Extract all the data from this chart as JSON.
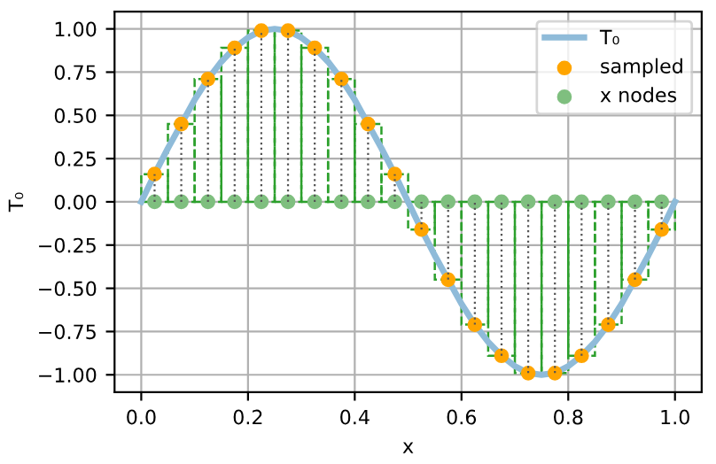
{
  "chart_data": {
    "type": "line",
    "xlabel": "x",
    "ylabel": "T₀",
    "grid": true,
    "legend": "top right",
    "xlim": [
      -0.05,
      1.05
    ],
    "ylim": [
      -1.1,
      1.1
    ],
    "xticks": [
      {
        "value": 0,
        "label": "0.0"
      },
      {
        "value": 0.2,
        "label": "0.2"
      },
      {
        "value": 0.4,
        "label": "0.4"
      },
      {
        "value": 0.6,
        "label": "0.6"
      },
      {
        "value": 0.8,
        "label": "0.8"
      },
      {
        "value": 1,
        "label": "1.0"
      }
    ],
    "yticks": [
      {
        "value": -1,
        "label": "−1.00"
      },
      {
        "value": -0.75,
        "label": "−0.75"
      },
      {
        "value": -0.5,
        "label": "−0.50"
      },
      {
        "value": -0.25,
        "label": "−0.25"
      },
      {
        "value": 0,
        "label": "0.00"
      },
      {
        "value": 0.25,
        "label": "0.25"
      },
      {
        "value": 0.5,
        "label": "0.50"
      },
      {
        "value": 0.75,
        "label": "0.75"
      },
      {
        "value": 1,
        "label": "1.00"
      }
    ],
    "series": [
      {
        "type": "bar",
        "color": "#2ca02c",
        "line_style": "dashed",
        "x": [
          0.025,
          0.075,
          0.125,
          0.175,
          0.225,
          0.275,
          0.325,
          0.375,
          0.425,
          0.475,
          0.525,
          0.575,
          0.625,
          0.675,
          0.725,
          0.775,
          0.825,
          0.875,
          0.925,
          0.975
        ],
        "values": [
          0.16,
          0.45,
          0.71,
          0.89,
          0.99,
          0.99,
          0.89,
          0.71,
          0.45,
          0.16,
          -0.16,
          -0.45,
          -0.71,
          -0.89,
          -0.99,
          -0.99,
          -0.89,
          -0.71,
          -0.45,
          -0.16
        ]
      },
      {
        "name": "T₀",
        "color": "#8fbbd9",
        "line_style": "solid",
        "marker": "none",
        "x": [
          0,
          0.025,
          0.05,
          0.075,
          0.1,
          0.125,
          0.15,
          0.175,
          0.2,
          0.225,
          0.25,
          0.275,
          0.3,
          0.325,
          0.35,
          0.375,
          0.4,
          0.425,
          0.45,
          0.475,
          0.5,
          0.525,
          0.55,
          0.575,
          0.6,
          0.625,
          0.65,
          0.675,
          0.7,
          0.725,
          0.75,
          0.775,
          0.8,
          0.825,
          0.85,
          0.875,
          0.9,
          0.925,
          0.95,
          0.975,
          1
        ],
        "values": [
          0,
          0.16,
          0.31,
          0.45,
          0.59,
          0.71,
          0.81,
          0.89,
          0.95,
          0.99,
          1,
          0.99,
          0.95,
          0.89,
          0.81,
          0.71,
          0.59,
          0.45,
          0.31,
          0.16,
          0,
          -0.16,
          -0.31,
          -0.45,
          -0.59,
          -0.71,
          -0.81,
          -0.89,
          -0.95,
          -0.99,
          -1,
          -0.99,
          -0.95,
          -0.89,
          -0.81,
          -0.71,
          -0.59,
          -0.45,
          -0.31,
          -0.16,
          0
        ]
      },
      {
        "type": "scatter",
        "name": "sampled",
        "color": "#ffa500",
        "marker": "circle",
        "line_style": "dotted",
        "x": [
          0.025,
          0.075,
          0.125,
          0.175,
          0.225,
          0.275,
          0.325,
          0.375,
          0.425,
          0.475,
          0.525,
          0.575,
          0.625,
          0.675,
          0.725,
          0.775,
          0.825,
          0.875,
          0.925,
          0.975
        ],
        "values": [
          0.16,
          0.45,
          0.71,
          0.89,
          0.99,
          0.99,
          0.89,
          0.71,
          0.45,
          0.16,
          -0.16,
          -0.45,
          -0.71,
          -0.89,
          -0.99,
          -0.99,
          -0.89,
          -0.71,
          -0.45,
          -0.16
        ],
        "errors": [
          [
            0,
            0.16
          ],
          [
            0,
            0.45
          ],
          [
            0,
            0.71
          ],
          [
            0,
            0.89
          ],
          [
            0,
            0.99
          ],
          [
            0,
            0.99
          ],
          [
            0,
            0.89
          ],
          [
            0,
            0.71
          ],
          [
            0,
            0.45
          ],
          [
            0,
            0.16
          ],
          [
            -0.16,
            0
          ],
          [
            -0.45,
            0
          ],
          [
            -0.71,
            0
          ],
          [
            -0.89,
            0
          ],
          [
            -0.99,
            0
          ],
          [
            -0.99,
            0
          ],
          [
            -0.89,
            0
          ],
          [
            -0.71,
            0
          ],
          [
            -0.45,
            0
          ],
          [
            -0.16,
            0
          ]
        ]
      },
      {
        "type": "scatter",
        "name": "x nodes",
        "color": "#7fbf7f",
        "marker": "circle",
        "x": [
          0.025,
          0.075,
          0.125,
          0.175,
          0.225,
          0.275,
          0.325,
          0.375,
          0.425,
          0.475,
          0.525,
          0.575,
          0.625,
          0.675,
          0.725,
          0.775,
          0.825,
          0.875,
          0.925,
          0.975
        ],
        "values": [
          0,
          0,
          0,
          0,
          0,
          0,
          0,
          0,
          0,
          0,
          0,
          0,
          0,
          0,
          0,
          0,
          0,
          0,
          0,
          0
        ]
      }
    ]
  }
}
